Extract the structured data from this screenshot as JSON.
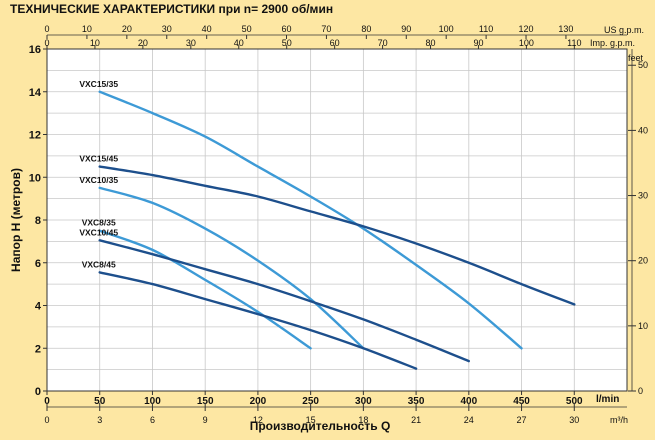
{
  "chart_data": {
    "type": "line",
    "title": "ТЕХНИЧЕСКИЕ ХАРАКТЕРИСТИКИ при n= 2900 об/мин",
    "ylabel": "Напор H   (метров)",
    "xlabel": "Производительность  Q",
    "x_unit": "l/min",
    "x_unit_bottom": "m³/h",
    "right_unit": "feet",
    "top_unit_1": "US g.p.m.",
    "top_unit_2": "Imp. g.p.m.",
    "xlim": [
      0,
      550
    ],
    "ylim": [
      0,
      16
    ],
    "grid": true,
    "x_ticks": [
      "0",
      "50",
      "100",
      "150",
      "200",
      "250",
      "300",
      "350",
      "400",
      "450",
      "500"
    ],
    "y_ticks": [
      "0",
      "2",
      "4",
      "6",
      "8",
      "10",
      "12",
      "14",
      "16"
    ],
    "m3h_ticks": [
      "0",
      "3",
      "6",
      "9",
      "12",
      "15",
      "18",
      "21",
      "24",
      "27",
      "30"
    ],
    "feet_ticks": [
      "0",
      "10",
      "20",
      "30",
      "40",
      "50"
    ],
    "us_gpm_ticks": [
      "0",
      "10",
      "20",
      "30",
      "40",
      "50",
      "60",
      "70",
      "80",
      "90",
      "100",
      "110",
      "120",
      "130"
    ],
    "imp_gpm_ticks": [
      "0",
      "10",
      "20",
      "30",
      "40",
      "50",
      "60",
      "70",
      "80",
      "90",
      "100",
      "110"
    ],
    "series": [
      {
        "name": "VXC15/35",
        "color": "#3d9ad6",
        "points": [
          [
            50,
            14.0
          ],
          [
            100,
            13.0
          ],
          [
            150,
            11.9
          ],
          [
            200,
            10.5
          ],
          [
            250,
            9.1
          ],
          [
            300,
            7.6
          ],
          [
            350,
            5.9
          ],
          [
            400,
            4.1
          ],
          [
            450,
            2.0
          ]
        ]
      },
      {
        "name": "VXC15/45",
        "color": "#1d4f8c",
        "points": [
          [
            50,
            10.5
          ],
          [
            100,
            10.1
          ],
          [
            150,
            9.6
          ],
          [
            200,
            9.1
          ],
          [
            250,
            8.4
          ],
          [
            300,
            7.7
          ],
          [
            350,
            6.9
          ],
          [
            400,
            6.0
          ],
          [
            450,
            5.0
          ],
          [
            500,
            4.05
          ]
        ]
      },
      {
        "name": "VXC10/35",
        "color": "#3d9ad6",
        "points": [
          [
            50,
            9.5
          ],
          [
            100,
            8.8
          ],
          [
            150,
            7.6
          ],
          [
            200,
            6.1
          ],
          [
            250,
            4.3
          ],
          [
            300,
            2.0
          ]
        ]
      },
      {
        "name": "VXC8/35",
        "color": "#3d9ad6",
        "points": [
          [
            50,
            7.5
          ],
          [
            100,
            6.6
          ],
          [
            150,
            5.2
          ],
          [
            200,
            3.7
          ],
          [
            250,
            2.0
          ]
        ]
      },
      {
        "name": "VXC10/45",
        "color": "#1d4f8c",
        "points": [
          [
            50,
            7.05
          ],
          [
            100,
            6.4
          ],
          [
            150,
            5.7
          ],
          [
            200,
            5.0
          ],
          [
            250,
            4.2
          ],
          [
            300,
            3.35
          ],
          [
            350,
            2.4
          ],
          [
            400,
            1.4
          ]
        ]
      },
      {
        "name": "VXC8/45",
        "color": "#1d4f8c",
        "points": [
          [
            50,
            5.55
          ],
          [
            100,
            5.0
          ],
          [
            150,
            4.3
          ],
          [
            200,
            3.6
          ],
          [
            250,
            2.85
          ],
          [
            300,
            2.0
          ],
          [
            350,
            1.05
          ]
        ]
      }
    ]
  }
}
